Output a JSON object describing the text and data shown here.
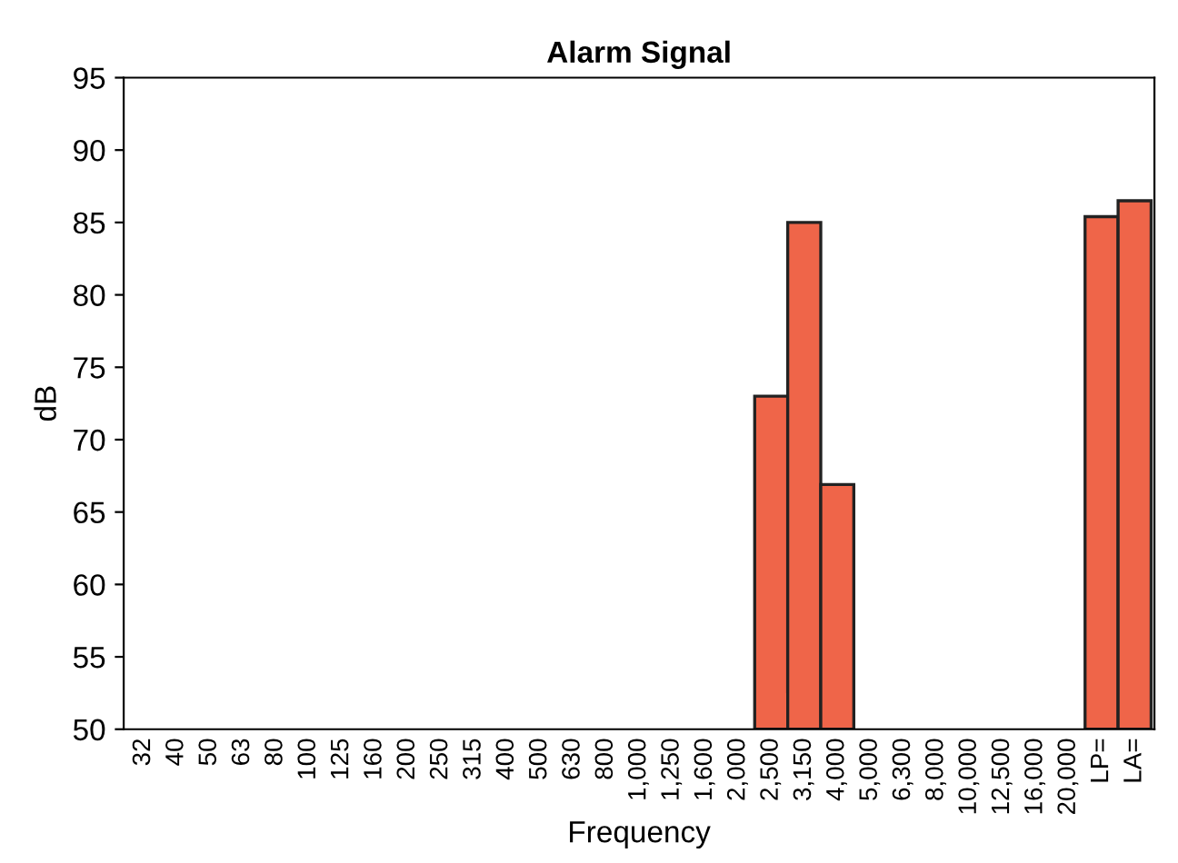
{
  "chart_data": {
    "type": "bar",
    "title": "Alarm Signal",
    "xlabel": "Frequency",
    "ylabel": "dB",
    "categories": [
      "32",
      "40",
      "50",
      "63",
      "80",
      "100",
      "125",
      "160",
      "200",
      "250",
      "315",
      "400",
      "500",
      "630",
      "800",
      "1,000",
      "1,250",
      "1,600",
      "2,000",
      "2,500",
      "3,150",
      "4,000",
      "5,000",
      "6,300",
      "8,000",
      "10,000",
      "12,500",
      "16,000",
      "20,000",
      "LP=",
      "LA="
    ],
    "values": [
      null,
      null,
      null,
      null,
      null,
      null,
      null,
      null,
      null,
      null,
      null,
      null,
      null,
      null,
      null,
      null,
      null,
      null,
      null,
      73.0,
      85.0,
      66.9,
      null,
      null,
      null,
      null,
      null,
      null,
      null,
      85.4,
      86.5
    ],
    "color": "#ef6549",
    "ylim": [
      50,
      95
    ],
    "yticks": [
      50,
      55,
      60,
      65,
      70,
      75,
      80,
      85,
      90,
      95
    ],
    "grid": false,
    "legend": false
  }
}
